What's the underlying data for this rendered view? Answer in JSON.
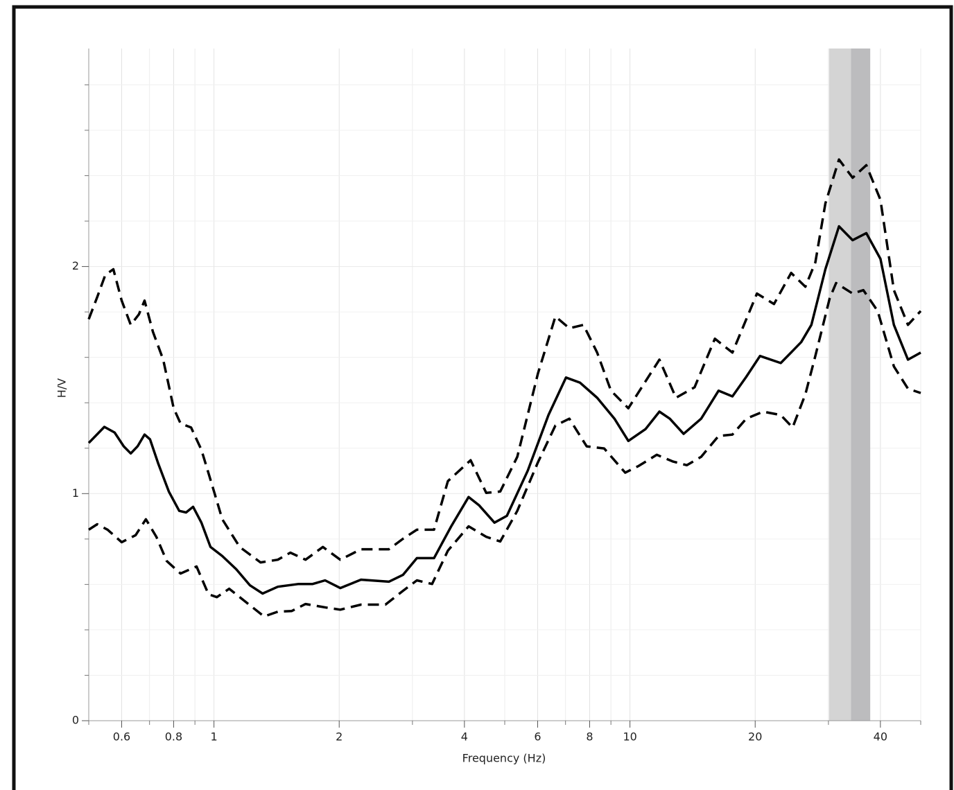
{
  "chart_data": {
    "type": "line",
    "xlabel": "Frequency (Hz)",
    "ylabel": "H/V",
    "xscale": "log",
    "xlim": [
      0.5,
      50
    ],
    "xticks": [
      0.6,
      0.8,
      1,
      2,
      4,
      6,
      8,
      10,
      20,
      40
    ],
    "xminor": [
      0.5,
      0.7,
      0.9,
      3,
      5,
      7,
      9,
      30,
      50
    ],
    "ylim": [
      0,
      2.96
    ],
    "yticks": [
      0,
      1,
      2
    ],
    "yminor": [
      0.2,
      0.4,
      0.6,
      0.8,
      1.2,
      1.4,
      1.6,
      1.8,
      2.2,
      2.4,
      2.6,
      2.8
    ],
    "grid": true,
    "bands": [
      {
        "xlim": [
          30.1,
          37.8
        ],
        "color": "#d4d4d4"
      },
      {
        "xlim": [
          34,
          37.8
        ],
        "color": "#bcbcbe"
      }
    ],
    "series": [
      {
        "color": "#000000",
        "dash": false,
        "x": [
          0.5,
          0.545,
          0.577,
          0.607,
          0.631,
          0.655,
          0.681,
          0.702,
          0.735,
          0.779,
          0.825,
          0.857,
          0.891,
          0.933,
          0.981,
          1.047,
          1.131,
          1.221,
          1.309,
          1.424,
          1.598,
          1.727,
          1.85,
          2.012,
          2.257,
          2.633,
          2.846,
          3.075,
          3.381,
          3.718,
          4.094,
          4.34,
          4.724,
          5.06,
          5.68,
          6.37,
          7.02,
          7.58,
          8.34,
          9.18,
          9.91,
          10.9,
          11.77,
          12.47,
          13.46,
          14.83,
          16.33,
          17.63,
          19.03,
          20.54,
          23.04,
          25.8,
          27.3,
          29.5,
          31.8,
          34.3,
          37,
          40,
          43.1,
          46.6,
          50
        ],
        "values": [
          1.223,
          1.294,
          1.269,
          1.208,
          1.177,
          1.208,
          1.26,
          1.239,
          1.131,
          1.009,
          0.924,
          0.917,
          0.942,
          0.872,
          0.765,
          0.725,
          0.667,
          0.596,
          0.56,
          0.59,
          0.602,
          0.602,
          0.618,
          0.584,
          0.621,
          0.612,
          0.642,
          0.716,
          0.716,
          0.856,
          0.985,
          0.948,
          0.872,
          0.902,
          1.101,
          1.346,
          1.511,
          1.489,
          1.422,
          1.33,
          1.232,
          1.284,
          1.361,
          1.33,
          1.263,
          1.33,
          1.453,
          1.428,
          1.514,
          1.606,
          1.575,
          1.667,
          1.743,
          1.988,
          2.177,
          2.116,
          2.147,
          2.034,
          1.743,
          1.59,
          1.621
        ]
      },
      {
        "color": "#000000",
        "dash": true,
        "x": [
          0.5,
          0.524,
          0.548,
          0.573,
          0.6,
          0.631,
          0.66,
          0.681,
          0.713,
          0.755,
          0.8,
          0.831,
          0.881,
          0.933,
          0.989,
          1.047,
          1.153,
          1.294,
          1.424,
          1.526,
          1.66,
          1.827,
          2.012,
          2.257,
          2.633,
          2.846,
          3.075,
          3.381,
          3.65,
          4.14,
          4.513,
          4.876,
          5.36,
          6.01,
          6.62,
          7.15,
          7.73,
          8.34,
          9,
          9.91,
          10.8,
          11.77,
          12.9,
          14.3,
          16,
          17.63,
          20.2,
          22.2,
          24.4,
          26.4,
          27.9,
          29.5,
          31.8,
          34.3,
          37,
          40,
          43.1,
          46.6,
          50
        ],
        "values": [
          1.768,
          1.865,
          1.963,
          1.988,
          1.85,
          1.743,
          1.789,
          1.85,
          1.713,
          1.59,
          1.376,
          1.309,
          1.291,
          1.193,
          1.04,
          0.887,
          0.765,
          0.697,
          0.709,
          0.74,
          0.709,
          0.765,
          0.709,
          0.755,
          0.755,
          0.801,
          0.841,
          0.841,
          1.055,
          1.147,
          1.003,
          1.009,
          1.162,
          1.529,
          1.78,
          1.728,
          1.743,
          1.621,
          1.453,
          1.376,
          1.483,
          1.59,
          1.422,
          1.468,
          1.682,
          1.621,
          1.881,
          1.835,
          1.972,
          1.911,
          2.018,
          2.278,
          2.471,
          2.391,
          2.446,
          2.294,
          1.896,
          1.743,
          1.804
        ]
      },
      {
        "color": "#000000",
        "dash": true,
        "x": [
          0.5,
          0.524,
          0.555,
          0.6,
          0.648,
          0.686,
          0.727,
          0.77,
          0.831,
          0.908,
          0.97,
          1.016,
          1.088,
          1.198,
          1.319,
          1.424,
          1.538,
          1.66,
          1.864,
          2.012,
          2.257,
          2.583,
          2.846,
          3.075,
          3.344,
          3.65,
          4.094,
          4.513,
          4.876,
          5.36,
          6.01,
          6.62,
          7.15,
          7.87,
          8.67,
          9.74,
          10.5,
          11.6,
          12.7,
          13.7,
          14.83,
          16.33,
          17.63,
          19.03,
          20.9,
          23.04,
          24.6,
          26.4,
          27.9,
          30.2,
          31.3,
          34.3,
          36.4,
          39.4,
          43.1,
          46.6,
          50
        ],
        "values": [
          0.841,
          0.865,
          0.841,
          0.786,
          0.817,
          0.887,
          0.81,
          0.703,
          0.648,
          0.679,
          0.557,
          0.544,
          0.581,
          0.52,
          0.459,
          0.48,
          0.483,
          0.514,
          0.498,
          0.489,
          0.511,
          0.511,
          0.572,
          0.618,
          0.602,
          0.749,
          0.856,
          0.81,
          0.789,
          0.924,
          1.138,
          1.3,
          1.33,
          1.208,
          1.199,
          1.092,
          1.122,
          1.171,
          1.141,
          1.125,
          1.162,
          1.254,
          1.26,
          1.33,
          1.361,
          1.346,
          1.291,
          1.437,
          1.606,
          1.859,
          1.927,
          1.881,
          1.896,
          1.804,
          1.56,
          1.462,
          1.443
        ]
      }
    ]
  }
}
